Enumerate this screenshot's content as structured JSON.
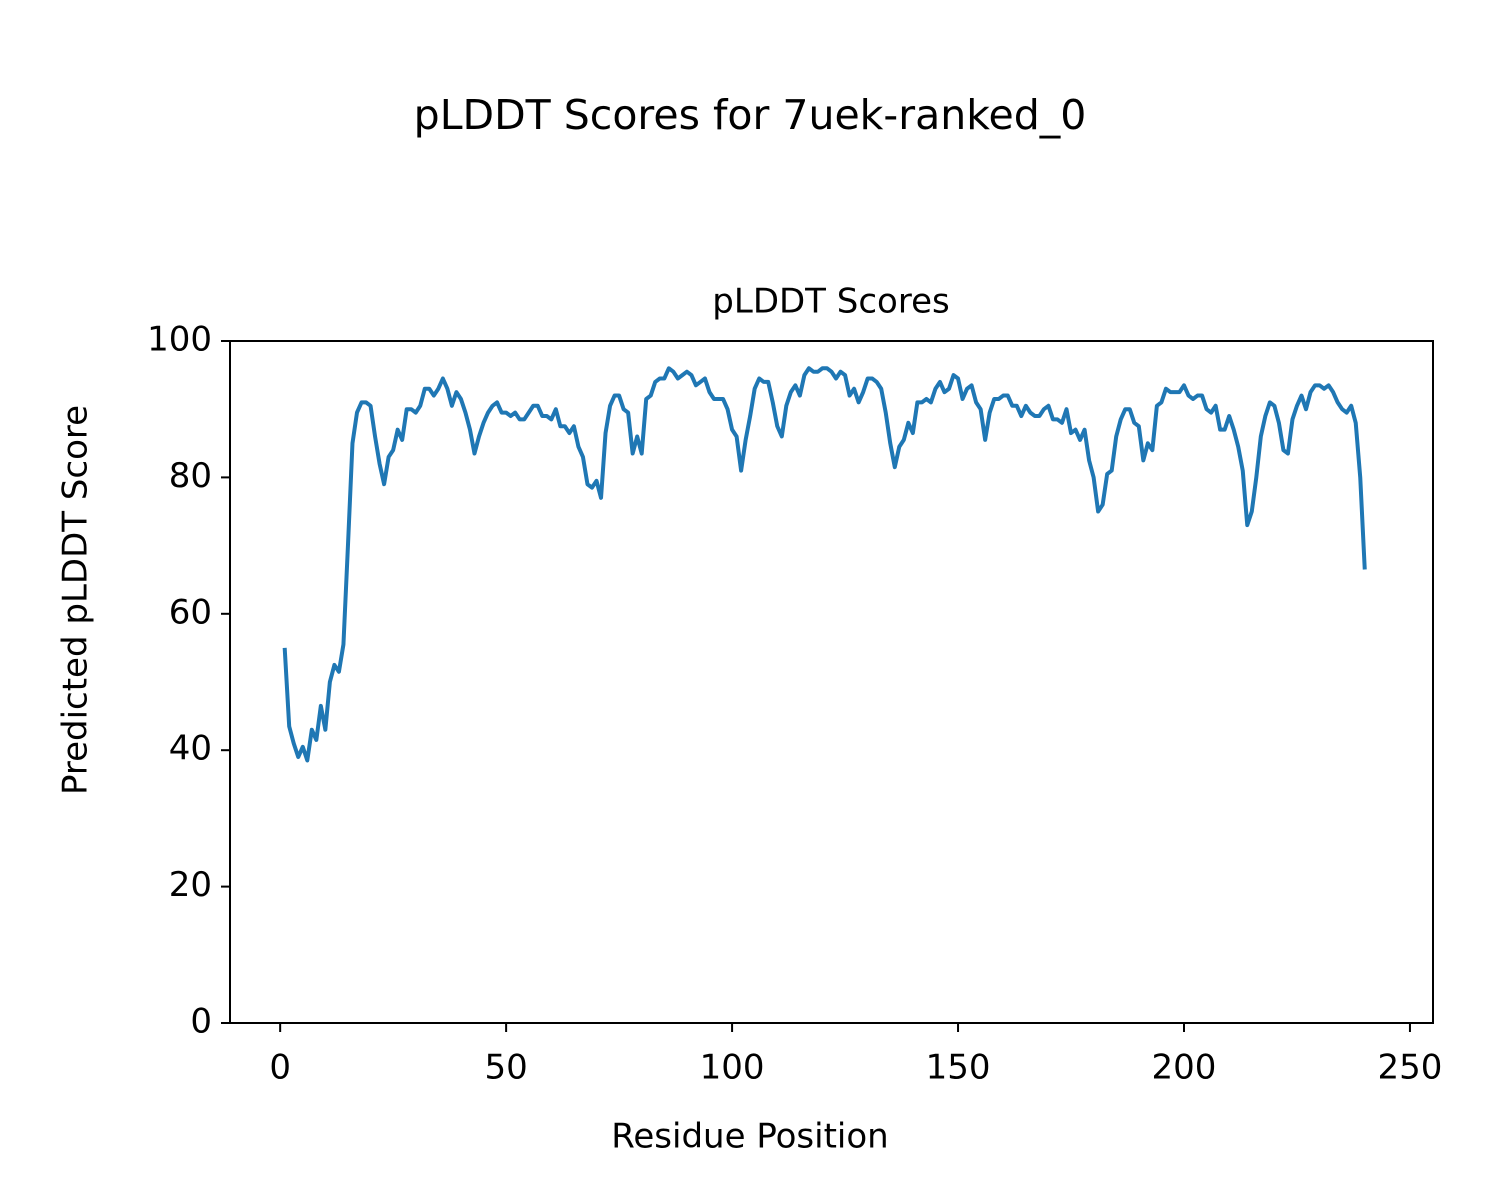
{
  "chart_data": {
    "type": "line",
    "suptitle": "pLDDT Scores for 7uek-ranked_0",
    "title": "pLDDT Scores",
    "xlabel": "Residue Position",
    "ylabel": "Predicted pLDDT Score",
    "color": "#1f77b4",
    "xlim": [
      -11.1,
      255.1
    ],
    "ylim": [
      0,
      100
    ],
    "xticks": [
      0,
      50,
      100,
      150,
      200,
      250
    ],
    "yticks": [
      0,
      20,
      40,
      60,
      80,
      100
    ],
    "grid": false,
    "x": [
      1,
      2,
      3,
      4,
      5,
      6,
      7,
      8,
      9,
      10,
      11,
      12,
      13,
      14,
      15,
      16,
      17,
      18,
      19,
      20,
      21,
      22,
      23,
      24,
      25,
      26,
      27,
      28,
      29,
      30,
      31,
      32,
      33,
      34,
      35,
      36,
      37,
      38,
      39,
      40,
      41,
      42,
      43,
      44,
      45,
      46,
      47,
      48,
      49,
      50,
      51,
      52,
      53,
      54,
      55,
      56,
      57,
      58,
      59,
      60,
      61,
      62,
      63,
      64,
      65,
      66,
      67,
      68,
      69,
      70,
      71,
      72,
      73,
      74,
      75,
      76,
      77,
      78,
      79,
      80,
      81,
      82,
      83,
      84,
      85,
      86,
      87,
      88,
      89,
      90,
      91,
      92,
      93,
      94,
      95,
      96,
      97,
      98,
      99,
      100,
      101,
      102,
      103,
      104,
      105,
      106,
      107,
      108,
      109,
      110,
      111,
      112,
      113,
      114,
      115,
      116,
      117,
      118,
      119,
      120,
      121,
      122,
      123,
      124,
      125,
      126,
      127,
      128,
      129,
      130,
      131,
      132,
      133,
      134,
      135,
      136,
      137,
      138,
      139,
      140,
      141,
      142,
      143,
      144,
      145,
      146,
      147,
      148,
      149,
      150,
      151,
      152,
      153,
      154,
      155,
      156,
      157,
      158,
      159,
      160,
      161,
      162,
      163,
      164,
      165,
      166,
      167,
      168,
      169,
      170,
      171,
      172,
      173,
      174,
      175,
      176,
      177,
      178,
      179,
      180,
      181,
      182,
      183,
      184,
      185,
      186,
      187,
      188,
      189,
      190,
      191,
      192,
      193,
      194,
      195,
      196,
      197,
      198,
      199,
      200,
      201,
      202,
      203,
      204,
      205,
      206,
      207,
      208,
      209,
      210,
      211,
      212,
      213,
      214,
      215,
      216,
      217,
      218,
      219,
      220,
      221,
      222,
      223,
      224,
      225,
      226,
      227,
      228,
      229,
      230,
      231,
      232,
      233,
      234,
      235,
      236,
      237,
      238,
      239,
      240
    ],
    "values": [
      55,
      43.5,
      41,
      39,
      40.5,
      38.5,
      43,
      41.5,
      46.5,
      43,
      50,
      52.5,
      51.5,
      55.5,
      70,
      85,
      89.5,
      91,
      91,
      90.5,
      86,
      82,
      79,
      83,
      84,
      87,
      85.5,
      90,
      90,
      89.5,
      90.5,
      93,
      93,
      92,
      93,
      94.5,
      93,
      90.5,
      92.5,
      91.5,
      89.5,
      87,
      83.5,
      86,
      88,
      89.5,
      90.5,
      91,
      89.5,
      89.5,
      89,
      89.5,
      88.5,
      88.5,
      89.5,
      90.5,
      90.5,
      89,
      89,
      88.5,
      90,
      87.5,
      87.5,
      86.5,
      87.5,
      84.5,
      83,
      79,
      78.5,
      79.5,
      77,
      86.5,
      90.5,
      92,
      92,
      90,
      89.5,
      83.5,
      86,
      83.5,
      91.5,
      92,
      94,
      94.5,
      94.5,
      96,
      95.5,
      94.5,
      95,
      95.5,
      95,
      93.5,
      94,
      94.5,
      92.5,
      91.5,
      91.5,
      91.5,
      90,
      87,
      86,
      81,
      85.5,
      89,
      93,
      94.5,
      94,
      94,
      91,
      87.5,
      86,
      90.5,
      92.5,
      93.5,
      92,
      95,
      96,
      95.5,
      95.5,
      96,
      96,
      95.5,
      94.5,
      95.5,
      95,
      92,
      93,
      91,
      92.5,
      94.5,
      94.5,
      94,
      93,
      89.5,
      85,
      81.5,
      84.5,
      85.5,
      88,
      86.5,
      91,
      91,
      91.5,
      91,
      93,
      94,
      92.5,
      93,
      95,
      94.5,
      91.5,
      93,
      93.5,
      91,
      90,
      85.5,
      89.5,
      91.5,
      91.5,
      92,
      92,
      90.5,
      90.5,
      89,
      90.5,
      89.5,
      89,
      89,
      90,
      90.5,
      88.5,
      88.5,
      88,
      90,
      86.5,
      87,
      85.5,
      87,
      82.5,
      80,
      75,
      76,
      80.5,
      81,
      86,
      88.5,
      90,
      90,
      88,
      87.5,
      82.5,
      85,
      84,
      90.5,
      91,
      93,
      92.5,
      92.5,
      92.5,
      93.5,
      92,
      91.5,
      92,
      92,
      90,
      89.5,
      90.5,
      87,
      87,
      89,
      87,
      84.5,
      81,
      73,
      75,
      80,
      86,
      89,
      91,
      90.5,
      88,
      84,
      83.5,
      88.5,
      90.5,
      92,
      90,
      92.5,
      93.5,
      93.5,
      93,
      93.5,
      92.5,
      91,
      90,
      89.5,
      90.5,
      88,
      80,
      66.5
    ]
  }
}
